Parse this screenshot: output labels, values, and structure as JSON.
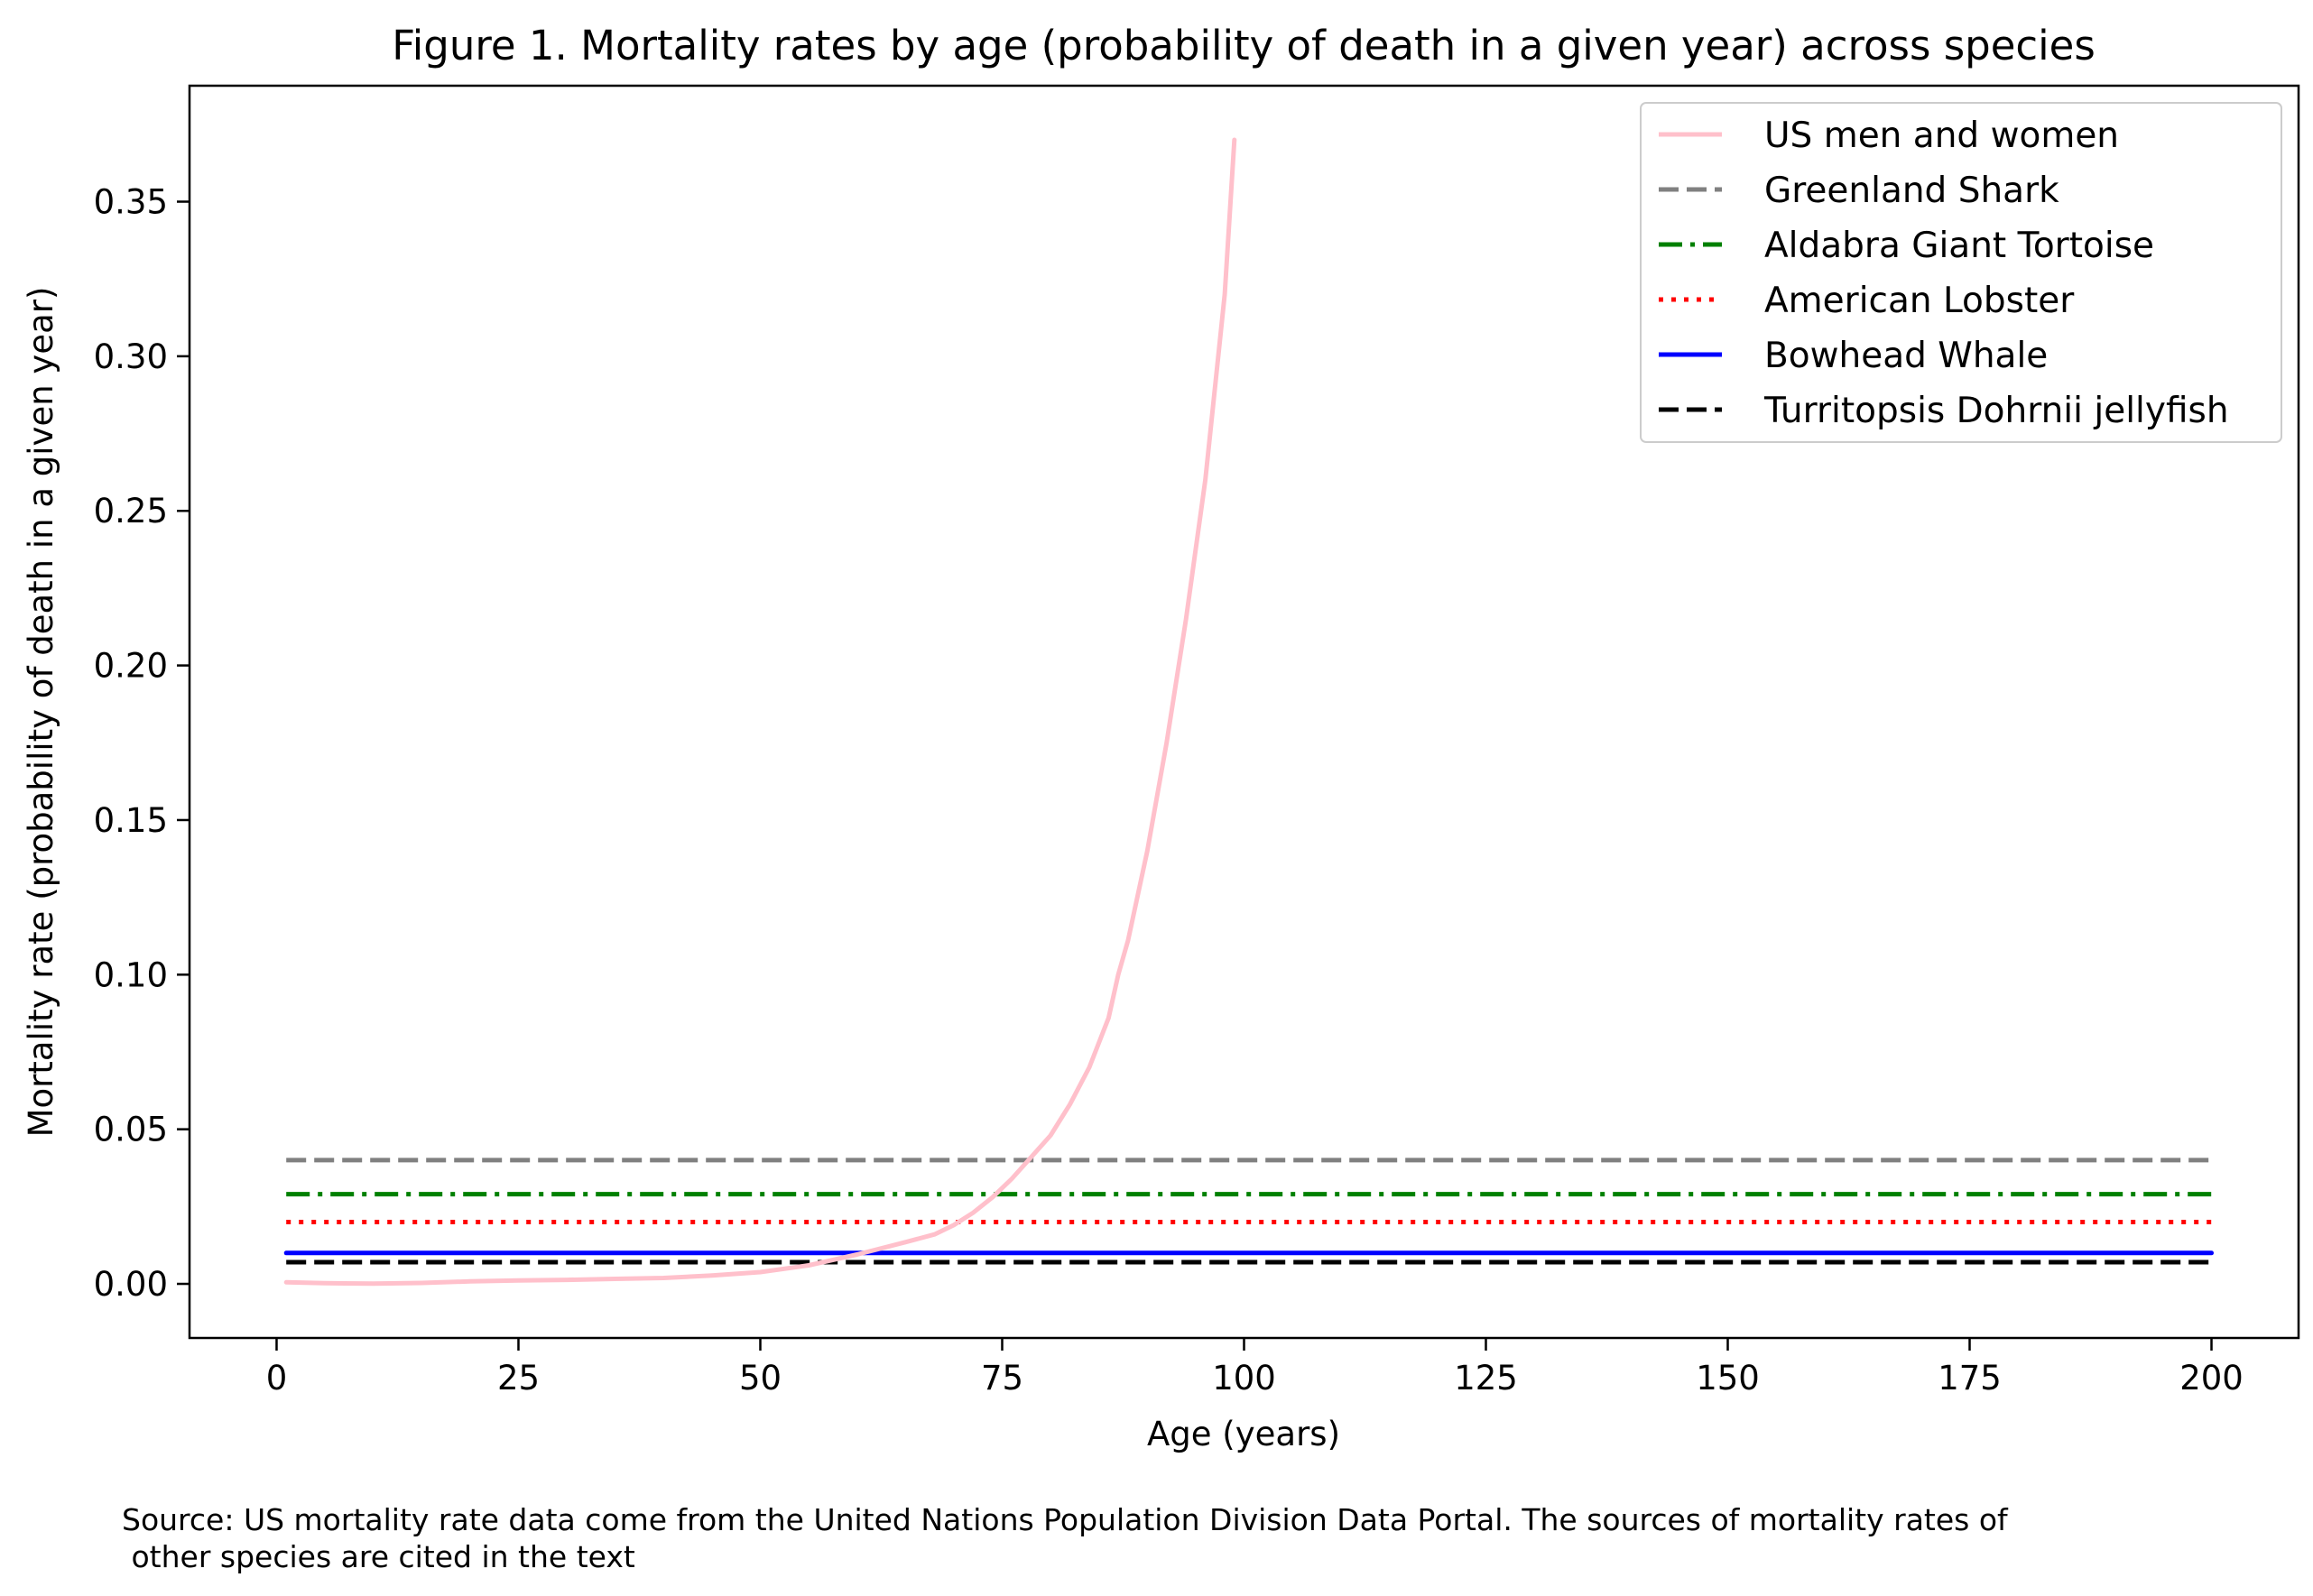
{
  "chart_data": {
    "type": "line",
    "title": "Figure 1. Mortality rates by age (probability of death in a given year) across species",
    "xlabel": "Age (years)",
    "ylabel": "Mortality rate (probability of death in a given year)",
    "xlim": [
      -9,
      209
    ],
    "ylim": [
      -0.0175,
      0.3875
    ],
    "xticks": [
      0,
      25,
      50,
      75,
      100,
      125,
      150,
      175,
      200
    ],
    "yticks": [
      0.0,
      0.05,
      0.1,
      0.15,
      0.2,
      0.25,
      0.3,
      0.35
    ],
    "xtick_labels": [
      "0",
      "25",
      "50",
      "75",
      "100",
      "125",
      "150",
      "175",
      "200"
    ],
    "ytick_labels": [
      "0.00",
      "0.05",
      "0.10",
      "0.15",
      "0.20",
      "0.25",
      "0.30",
      "0.35"
    ],
    "grid": false,
    "legend_position": "top-right",
    "series": [
      {
        "name": "US men and women",
        "color": "#ffc0cb",
        "dash": "solid",
        "x": [
          1,
          5,
          10,
          15,
          20,
          25,
          30,
          35,
          40,
          45,
          50,
          55,
          60,
          65,
          68,
          70,
          72,
          74,
          76,
          78,
          80,
          82,
          84,
          86,
          87,
          88,
          90,
          92,
          94,
          96,
          98,
          99
        ],
        "y": [
          0.0005,
          0.0002,
          0.0001,
          0.0003,
          0.0008,
          0.0011,
          0.0013,
          0.0016,
          0.0019,
          0.0027,
          0.0038,
          0.006,
          0.0095,
          0.0135,
          0.016,
          0.019,
          0.023,
          0.028,
          0.034,
          0.041,
          0.048,
          0.058,
          0.07,
          0.086,
          0.1,
          0.111,
          0.14,
          0.175,
          0.215,
          0.26,
          0.32,
          0.37
        ]
      },
      {
        "name": "Greenland Shark",
        "color": "#808080",
        "dash": "dashed",
        "x": [
          1,
          200
        ],
        "y": [
          0.04,
          0.04
        ]
      },
      {
        "name": "Aldabra Giant Tortoise",
        "color": "#008000",
        "dash": "dashdot",
        "x": [
          1,
          200
        ],
        "y": [
          0.029,
          0.029
        ]
      },
      {
        "name": "American Lobster",
        "color": "#ff0000",
        "dash": "dotted",
        "x": [
          1,
          200
        ],
        "y": [
          0.02,
          0.02
        ]
      },
      {
        "name": "Bowhead Whale",
        "color": "#0000ff",
        "dash": "solid",
        "x": [
          1,
          200
        ],
        "y": [
          0.01,
          0.01
        ]
      },
      {
        "name": "Turritopsis Dohrnii jellyfish",
        "color": "#000000",
        "dash": "dashed",
        "x": [
          1,
          200
        ],
        "y": [
          0.007,
          0.007
        ]
      }
    ]
  },
  "source_note": {
    "line1": "Source: US mortality rate data come from the United Nations Population Division Data Portal. The sources of mortality rates of",
    "line2": " other species are cited in the text"
  }
}
